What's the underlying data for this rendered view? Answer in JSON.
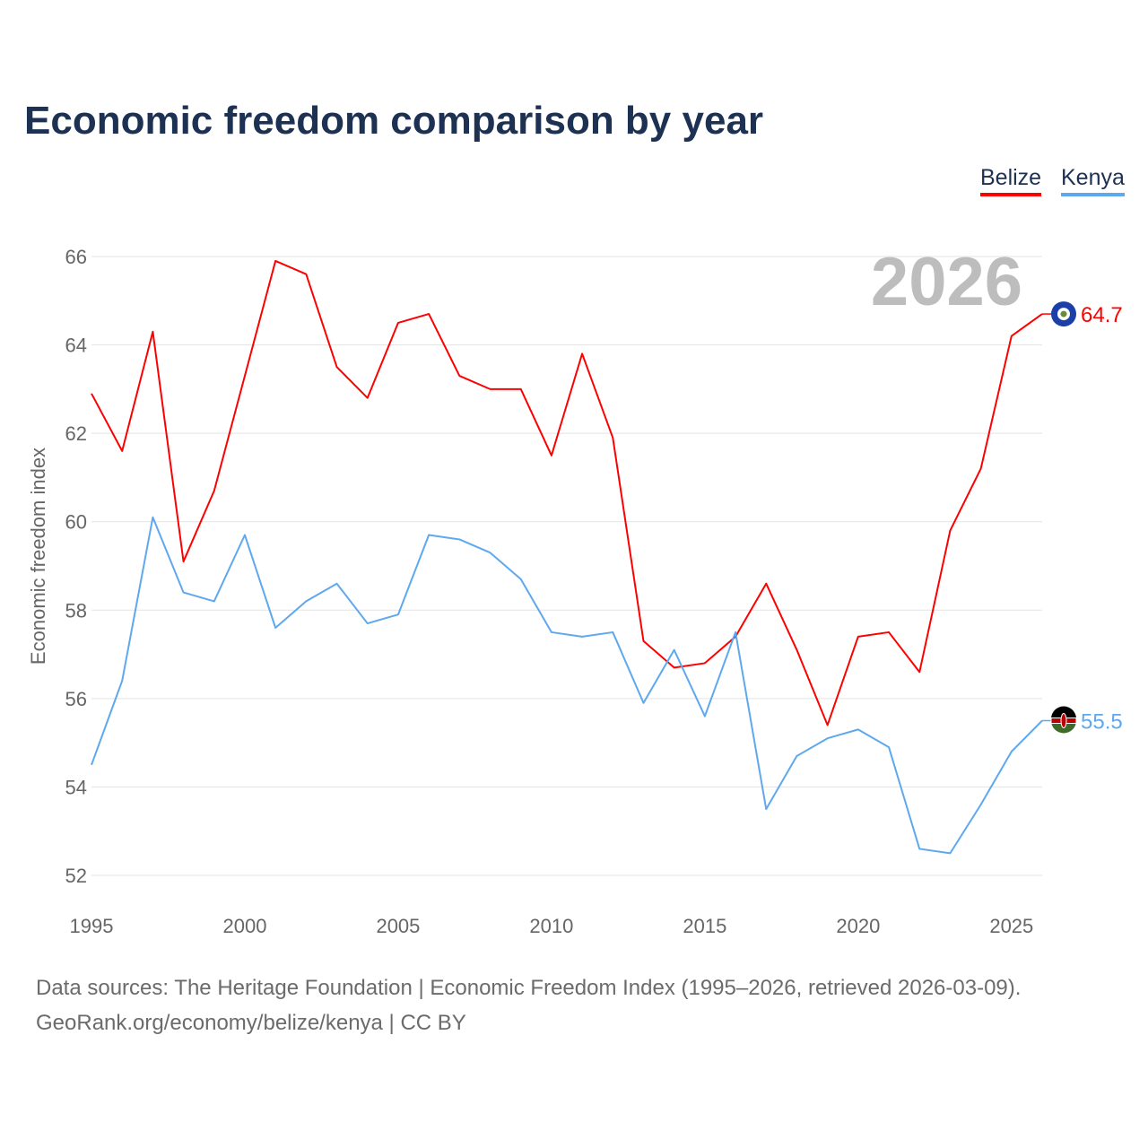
{
  "chart_data": {
    "type": "line",
    "title": "Economic freedom comparison by year",
    "xlabel": "",
    "ylabel": "Economic freedom index",
    "xlim": [
      1995,
      2026
    ],
    "ylim": [
      52,
      66
    ],
    "yticks": [
      52,
      54,
      56,
      58,
      60,
      62,
      64,
      66
    ],
    "xticks": [
      1995,
      2000,
      2005,
      2010,
      2015,
      2020,
      2025
    ],
    "grid": true,
    "legend_position": "top-right",
    "year_label": "2026",
    "x": [
      1995,
      1996,
      1997,
      1998,
      1999,
      2000,
      2001,
      2002,
      2003,
      2004,
      2005,
      2006,
      2007,
      2008,
      2009,
      2010,
      2011,
      2012,
      2013,
      2014,
      2015,
      2016,
      2017,
      2018,
      2019,
      2020,
      2021,
      2022,
      2023,
      2024,
      2025,
      2026
    ],
    "series": [
      {
        "name": "Belize",
        "color": "#ff0000",
        "end_label": "64.7",
        "values": [
          62.9,
          61.6,
          64.3,
          59.1,
          60.7,
          63.3,
          65.9,
          65.6,
          63.5,
          62.8,
          64.5,
          64.7,
          63.3,
          63.0,
          63.0,
          61.5,
          63.8,
          61.9,
          57.3,
          56.7,
          56.8,
          57.4,
          58.6,
          57.1,
          55.4,
          57.4,
          57.5,
          56.6,
          59.8,
          61.2,
          64.2,
          64.7
        ]
      },
      {
        "name": "Kenya",
        "color": "#5ea8ef",
        "end_label": "55.5",
        "values": [
          54.5,
          56.4,
          60.1,
          58.4,
          58.2,
          59.7,
          57.6,
          58.2,
          58.6,
          57.7,
          57.9,
          59.7,
          59.6,
          59.3,
          58.7,
          57.5,
          57.4,
          57.5,
          55.9,
          57.1,
          55.6,
          57.5,
          53.5,
          54.7,
          55.1,
          55.3,
          54.9,
          52.6,
          52.5,
          53.6,
          54.8,
          55.5
        ]
      }
    ]
  },
  "footer": {
    "sources": "Data sources: The Heritage Foundation | Economic Freedom Index (1995–2026, retrieved 2026-03-09).",
    "credit": "GeoRank.org/economy/belize/kenya | CC BY"
  }
}
